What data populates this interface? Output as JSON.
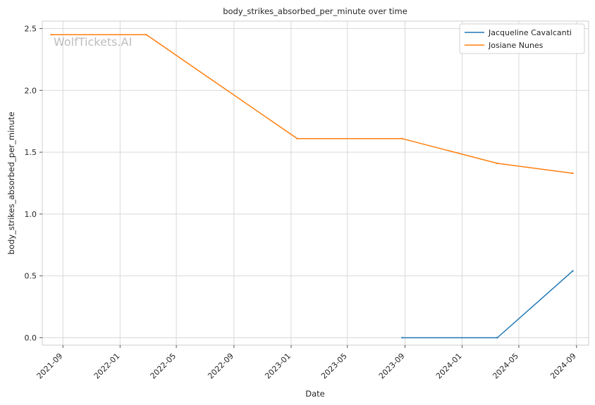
{
  "chart_data": {
    "type": "line",
    "title": "body_strikes_absorbed_per_minute over time",
    "xlabel": "Date",
    "ylabel": "body_strikes_absorbed_per_minute",
    "watermark": "WolfTickets.AI",
    "x_ticks": [
      "2021-09",
      "2022-01",
      "2022-05",
      "2022-09",
      "2023-01",
      "2023-05",
      "2023-09",
      "2024-01",
      "2024-05",
      "2024-09"
    ],
    "y_ticks": [
      "0.0",
      "0.5",
      "1.0",
      "1.5",
      "2.0",
      "2.5"
    ],
    "xlim": [
      "2021-07-19",
      "2024-09-27"
    ],
    "ylim": [
      -0.06,
      2.56
    ],
    "grid": true,
    "legend_position": "top-right",
    "series": [
      {
        "name": "Jacqueline Cavalcanti",
        "color": "#1f77b4",
        "points": [
          {
            "x": "2023-08-26",
            "y": 0.0
          },
          {
            "x": "2024-03-16",
            "y": 0.0
          },
          {
            "x": "2024-08-24",
            "y": 0.54
          }
        ]
      },
      {
        "name": "Josiane Nunes",
        "color": "#ff7f0e",
        "points": [
          {
            "x": "2021-08-07",
            "y": 2.45
          },
          {
            "x": "2022-02-26",
            "y": 2.45
          },
          {
            "x": "2023-01-14",
            "y": 1.61
          },
          {
            "x": "2023-08-26",
            "y": 1.61
          },
          {
            "x": "2024-03-16",
            "y": 1.41
          },
          {
            "x": "2024-08-24",
            "y": 1.33
          }
        ]
      }
    ]
  }
}
